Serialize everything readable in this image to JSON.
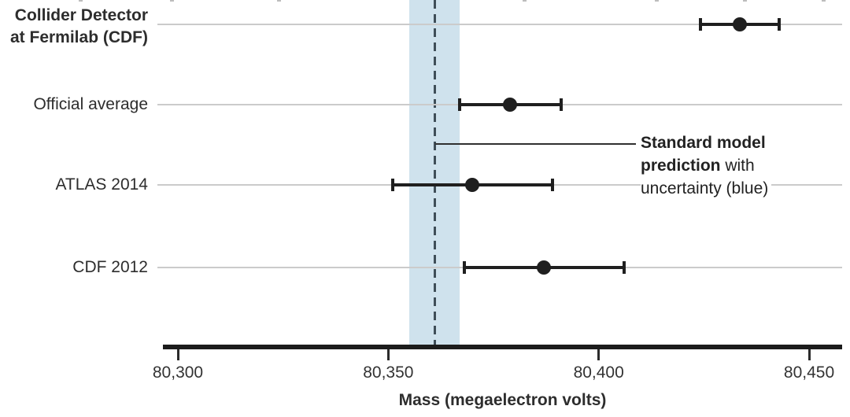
{
  "chart_data": {
    "type": "scatter",
    "subtype": "dot-and-whisker-comparison",
    "xlabel": "Mass (megaelectron volts)",
    "xlim": [
      80296,
      80458
    ],
    "x_ticks": [
      {
        "value": 80300,
        "label": "80,300"
      },
      {
        "value": 80350,
        "label": "80,350"
      },
      {
        "value": 80400,
        "label": "80,400"
      },
      {
        "value": 80450,
        "label": "80,450"
      }
    ],
    "grid": "horizontal-row-lines",
    "rows": [
      {
        "label": "Collider Detector at Fermilab (CDF)",
        "label_lines": [
          "Collider Detector",
          "at Fermilab (CDF)"
        ],
        "bold": true,
        "value": 80433.5,
        "error": 9.4
      },
      {
        "label": "Official average",
        "label_lines": [
          "Official average"
        ],
        "bold": false,
        "value": 80379,
        "error": 12
      },
      {
        "label": "ATLAS 2014",
        "label_lines": [
          "ATLAS 2014"
        ],
        "bold": false,
        "value": 80370,
        "error": 19
      },
      {
        "label": "CDF 2012",
        "label_lines": [
          "CDF 2012"
        ],
        "bold": false,
        "value": 80387,
        "error": 19
      }
    ],
    "sm_prediction": {
      "value": 80361,
      "band": [
        80355,
        80367
      ]
    },
    "annotation": {
      "line1_bold": "Standard model",
      "line2_bold": "prediction",
      "line2_rest": " with",
      "line3": "uncertainty (blue)"
    }
  },
  "colors": {
    "band": "#cfe2ed",
    "dashed_line": "#3f4e58",
    "marker": "#1f1f1f",
    "gridline": "#cbcbcb",
    "axis": "#1c1c1c",
    "text": "#2d2d2d"
  },
  "layout_artifacts": {
    "top_crop_marks_x": [
      100,
      216,
      352,
      664,
      832,
      944,
      1044
    ]
  }
}
